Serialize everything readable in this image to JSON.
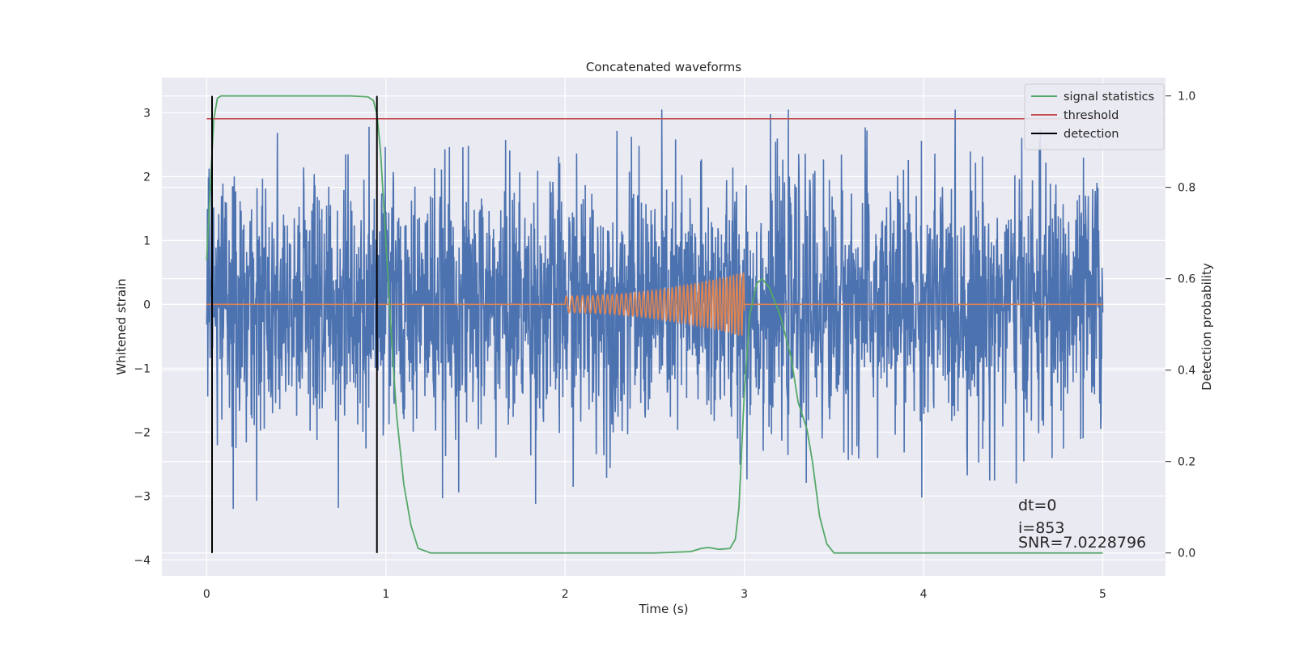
{
  "chart_data": {
    "type": "line",
    "title": "Concatenated waveforms",
    "xlabel": "Time (s)",
    "ylabel": "Whitened strain",
    "ylabel_right": "Detection probability",
    "xlim": [
      -0.25,
      5.35
    ],
    "ylim": [
      -4.25,
      3.55
    ],
    "ylim_right": [
      -0.05,
      1.04
    ],
    "xticks": [
      0,
      1,
      2,
      3,
      4,
      5
    ],
    "yticks": [
      -4,
      -3,
      -2,
      -1,
      0,
      1,
      2,
      3
    ],
    "yticks_right": [
      "0.0",
      "0.2",
      "0.4",
      "0.6",
      "0.8",
      "1.0"
    ],
    "grid": true,
    "legend_position": "top-right",
    "series": [
      {
        "name": "",
        "axis": "left",
        "color": "#4c72b0",
        "description_x_range": [
          0,
          5
        ],
        "noise_spread": 1.0,
        "x": [],
        "y": []
      },
      {
        "name": "",
        "axis": "left",
        "color": "#dd8452",
        "chirp": {
          "start": 2.0,
          "end": 3.0,
          "amp_start": 0.13,
          "amp_end": 0.5,
          "f_start": 32,
          "f_end": 55
        },
        "flat_range": [
          0,
          5
        ]
      },
      {
        "name": "signal statistics",
        "axis": "right",
        "color": "#55a868",
        "x": [
          0.0,
          0.02,
          0.04,
          0.06,
          0.08,
          0.12,
          0.2,
          0.4,
          0.6,
          0.8,
          0.9,
          0.93,
          0.95,
          0.97,
          1.0,
          1.03,
          1.06,
          1.1,
          1.14,
          1.18,
          1.25,
          1.5,
          2.0,
          2.5,
          2.7,
          2.76,
          2.8,
          2.86,
          2.92,
          2.95,
          2.97,
          3.0,
          3.03,
          3.07,
          3.1,
          3.14,
          3.2,
          3.26,
          3.3,
          3.35,
          3.38,
          3.42,
          3.46,
          3.5,
          3.6,
          4.0,
          4.5,
          5.0
        ],
        "y": [
          0.64,
          0.8,
          0.95,
          0.995,
          1.0,
          1.0,
          1.0,
          1.0,
          1.0,
          1.0,
          0.998,
          0.99,
          0.96,
          0.88,
          0.68,
          0.48,
          0.3,
          0.15,
          0.06,
          0.01,
          0.0,
          0.0,
          0.0,
          0.0,
          0.003,
          0.01,
          0.012,
          0.008,
          0.01,
          0.03,
          0.1,
          0.35,
          0.52,
          0.59,
          0.6,
          0.58,
          0.52,
          0.43,
          0.33,
          0.27,
          0.2,
          0.08,
          0.02,
          0.0,
          0.0,
          0.0,
          0.0,
          0.0
        ]
      },
      {
        "name": "threshold",
        "axis": "right",
        "color": "#c44e52",
        "x": [
          0,
          5.1
        ],
        "y": [
          0.95,
          0.95
        ]
      },
      {
        "name": "detection",
        "axis": "right",
        "color": "#000000",
        "x": [
          0.03,
          0.95
        ],
        "y_range": [
          0.0,
          1.0
        ]
      }
    ],
    "annotations": [
      {
        "text": "dt=0"
      },
      {
        "text": "i=853"
      },
      {
        "text": "SNR=7.0228796"
      }
    ]
  }
}
